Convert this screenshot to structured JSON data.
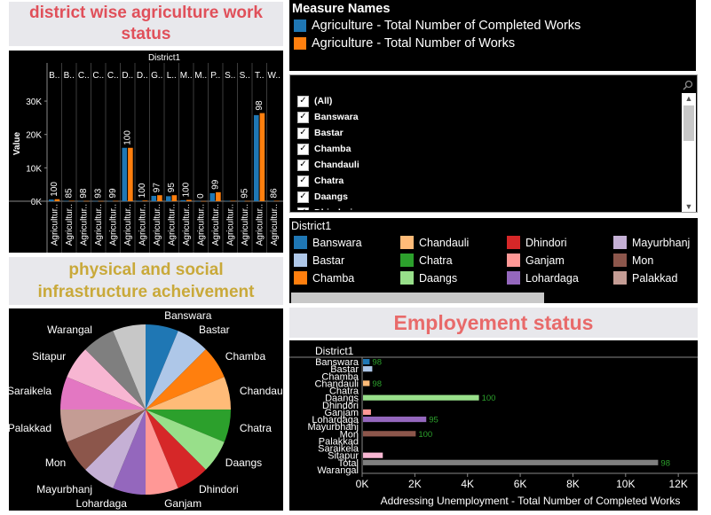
{
  "panels": {
    "agri_title": "district wise agriculture work status",
    "infra_title": "physical and social infrastructure acheivement",
    "emp_title": "Employement status"
  },
  "measure_legend": {
    "title": "Measure Names",
    "items": [
      {
        "label": "Agriculture - Total Number of Completed Works",
        "color": "#1f77b4"
      },
      {
        "label": "Agriculture - Total Number of Works",
        "color": "#ff7f0e"
      }
    ]
  },
  "filter": {
    "items": [
      "(All)",
      "Banswara",
      "Bastar",
      "Chamba",
      "Chandauli",
      "Chatra",
      "Daangs",
      "Dhindori"
    ]
  },
  "district_legend": {
    "title": "District1",
    "items": [
      {
        "label": "Banswara",
        "color": "#1f77b4"
      },
      {
        "label": "Bastar",
        "color": "#aec7e8"
      },
      {
        "label": "Chamba",
        "color": "#ff7f0e"
      },
      {
        "label": "Chandauli",
        "color": "#ffbb78"
      },
      {
        "label": "Chatra",
        "color": "#2ca02c"
      },
      {
        "label": "Daangs",
        "color": "#98df8a"
      },
      {
        "label": "Dhindori",
        "color": "#d62728"
      },
      {
        "label": "Ganjam",
        "color": "#ff9896"
      },
      {
        "label": "Lohardaga",
        "color": "#9467bd"
      },
      {
        "label": "Mayurbhanj",
        "color": "#c5b0d5"
      },
      {
        "label": "Mon",
        "color": "#8c564b"
      },
      {
        "label": "Palakkad",
        "color": "#c49c94"
      }
    ]
  },
  "chart_data": [
    {
      "type": "bar",
      "header": "District1",
      "ylabel": "Value",
      "yticks": [
        "0K",
        "10K",
        "20K",
        "30K"
      ],
      "ylim": [
        0,
        34000
      ],
      "categories": [
        "B..",
        "B..",
        "C..",
        "C..",
        "C..",
        "D..",
        "D..",
        "G..",
        "L..",
        "M..",
        "M..",
        "P..",
        "S..",
        "S..",
        "T..",
        "W.."
      ],
      "x_tick_label": "Agricultur..",
      "series": [
        {
          "name": "Agriculture - Total Number of Completed Works",
          "color": "#1f77b4",
          "values": [
            500,
            100,
            60,
            60,
            80,
            16000,
            150,
            1600,
            1500,
            300,
            30,
            2400,
            100,
            60,
            25800,
            100
          ]
        },
        {
          "name": "Agriculture - Total Number of Works",
          "color": "#ff7f0e",
          "values": [
            600,
            120,
            80,
            60,
            100,
            16000,
            200,
            1800,
            1800,
            400,
            40,
            2700,
            120,
            80,
            26400,
            120
          ]
        }
      ],
      "labels": [
        "100",
        "85",
        "98",
        "93",
        "99",
        "100",
        "100",
        "97",
        "95",
        "100",
        "0",
        "99",
        "",
        "95",
        "98",
        "86"
      ]
    },
    {
      "type": "pie",
      "labels": [
        "Banswara",
        "Bastar",
        "Chamba",
        "Chandauli",
        "Chatra",
        "Daangs",
        "Dhindori",
        "Ganjam",
        "Lohardaga",
        "Mayurbhanj",
        "Mon",
        "Palakkad",
        "Saraikela",
        "Sitapur",
        "Warangal",
        ""
      ],
      "values": [
        1,
        1,
        1,
        1,
        1,
        1,
        1,
        1,
        1,
        1,
        1,
        1,
        1,
        1,
        1,
        1
      ],
      "colors": [
        "#1f77b4",
        "#aec7e8",
        "#ff7f0e",
        "#ffbb78",
        "#2ca02c",
        "#98df8a",
        "#d62728",
        "#ff9896",
        "#9467bd",
        "#c5b0d5",
        "#8c564b",
        "#c49c94",
        "#e377c2",
        "#f7b6d2",
        "#7f7f7f",
        "#c7c7c7"
      ]
    },
    {
      "type": "bar",
      "orientation": "horizontal",
      "header": "District1",
      "xlabel": "Addressing Unemployment - Total Number of Completed Works",
      "xticks": [
        "0K",
        "2K",
        "4K",
        "6K",
        "8K",
        "10K",
        "12K"
      ],
      "xlim": [
        0,
        12500
      ],
      "categories": [
        "Banswara",
        "Bastar",
        "Chamba",
        "Chandauli",
        "Chatra",
        "Daangs",
        "Dhindori",
        "Ganjam",
        "Lohardaga",
        "Mayurbhanj",
        "Mon",
        "Palakkad",
        "Saraikela",
        "Sitapur",
        "Total",
        "Warangal"
      ],
      "values": [
        250,
        350,
        0,
        250,
        0,
        4400,
        0,
        300,
        2400,
        0,
        2000,
        0,
        0,
        750,
        11200,
        0
      ],
      "colors": [
        "#1f77b4",
        "#aec7e8",
        "#ff7f0e",
        "#ffbb78",
        "#2ca02c",
        "#98df8a",
        "#d62728",
        "#ff9896",
        "#9467bd",
        "#c5b0d5",
        "#8c564b",
        "#c49c94",
        "#e377c2",
        "#f7b6d2",
        "#7f7f7f",
        "#c7c7c7"
      ],
      "labels": [
        "98",
        "",
        "",
        "98",
        "",
        "100",
        "",
        "",
        "95",
        "",
        "100",
        "",
        "",
        "",
        "98",
        ""
      ]
    }
  ]
}
